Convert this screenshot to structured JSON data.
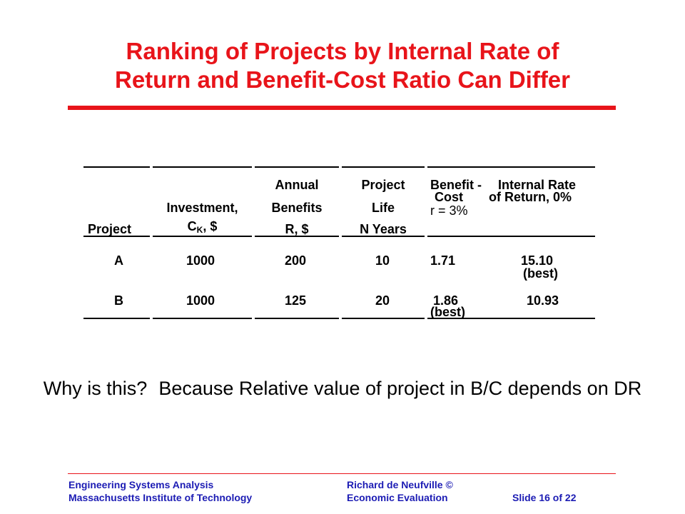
{
  "title": {
    "line1": "Ranking of Projects by Internal Rate of",
    "line2": "Return and Benefit-Cost Ratio Can Differ"
  },
  "table": {
    "headers": {
      "project": "Project",
      "investment_line1": "Investment,",
      "investment_c": "C",
      "investment_sub": "K",
      "investment_unit": ", $",
      "benefits_line1": "Annual",
      "benefits_line2": "Benefits",
      "benefits_line3": "R, $",
      "life_line1": "Project",
      "life_line2": "Life",
      "life_line3": "N Years",
      "bc_line1": "Benefit -",
      "bc_line2": "Cost",
      "bc_line3": "r = 3%",
      "irr_line1": "Internal Rate",
      "irr_line2": "of Return, 0%"
    },
    "rows": [
      {
        "project": "A",
        "investment": "1000",
        "benefits": "200",
        "life": "10",
        "bc": "1.71",
        "bc_note": "",
        "irr": "15.10",
        "irr_note": "(best)"
      },
      {
        "project": "B",
        "investment": "1000",
        "benefits": "125",
        "life": "20",
        "bc": "1.86",
        "bc_note": "(best)",
        "irr": "10.93",
        "irr_note": ""
      }
    ]
  },
  "question": {
    "part1": "Why is this?",
    "part2": "Because Relative value of project in B/C depends on DR"
  },
  "footer": {
    "left_line1": "Engineering Systems Analysis",
    "left_line2": "Massachusetts Institute of Technology",
    "mid_line1": "Richard de Neufville  ©",
    "mid_line2": "Economic Evaluation",
    "right_line2": "Slide 16 of 22"
  },
  "colors": {
    "title": "#e8141a",
    "footer": "#1c1cb4"
  }
}
